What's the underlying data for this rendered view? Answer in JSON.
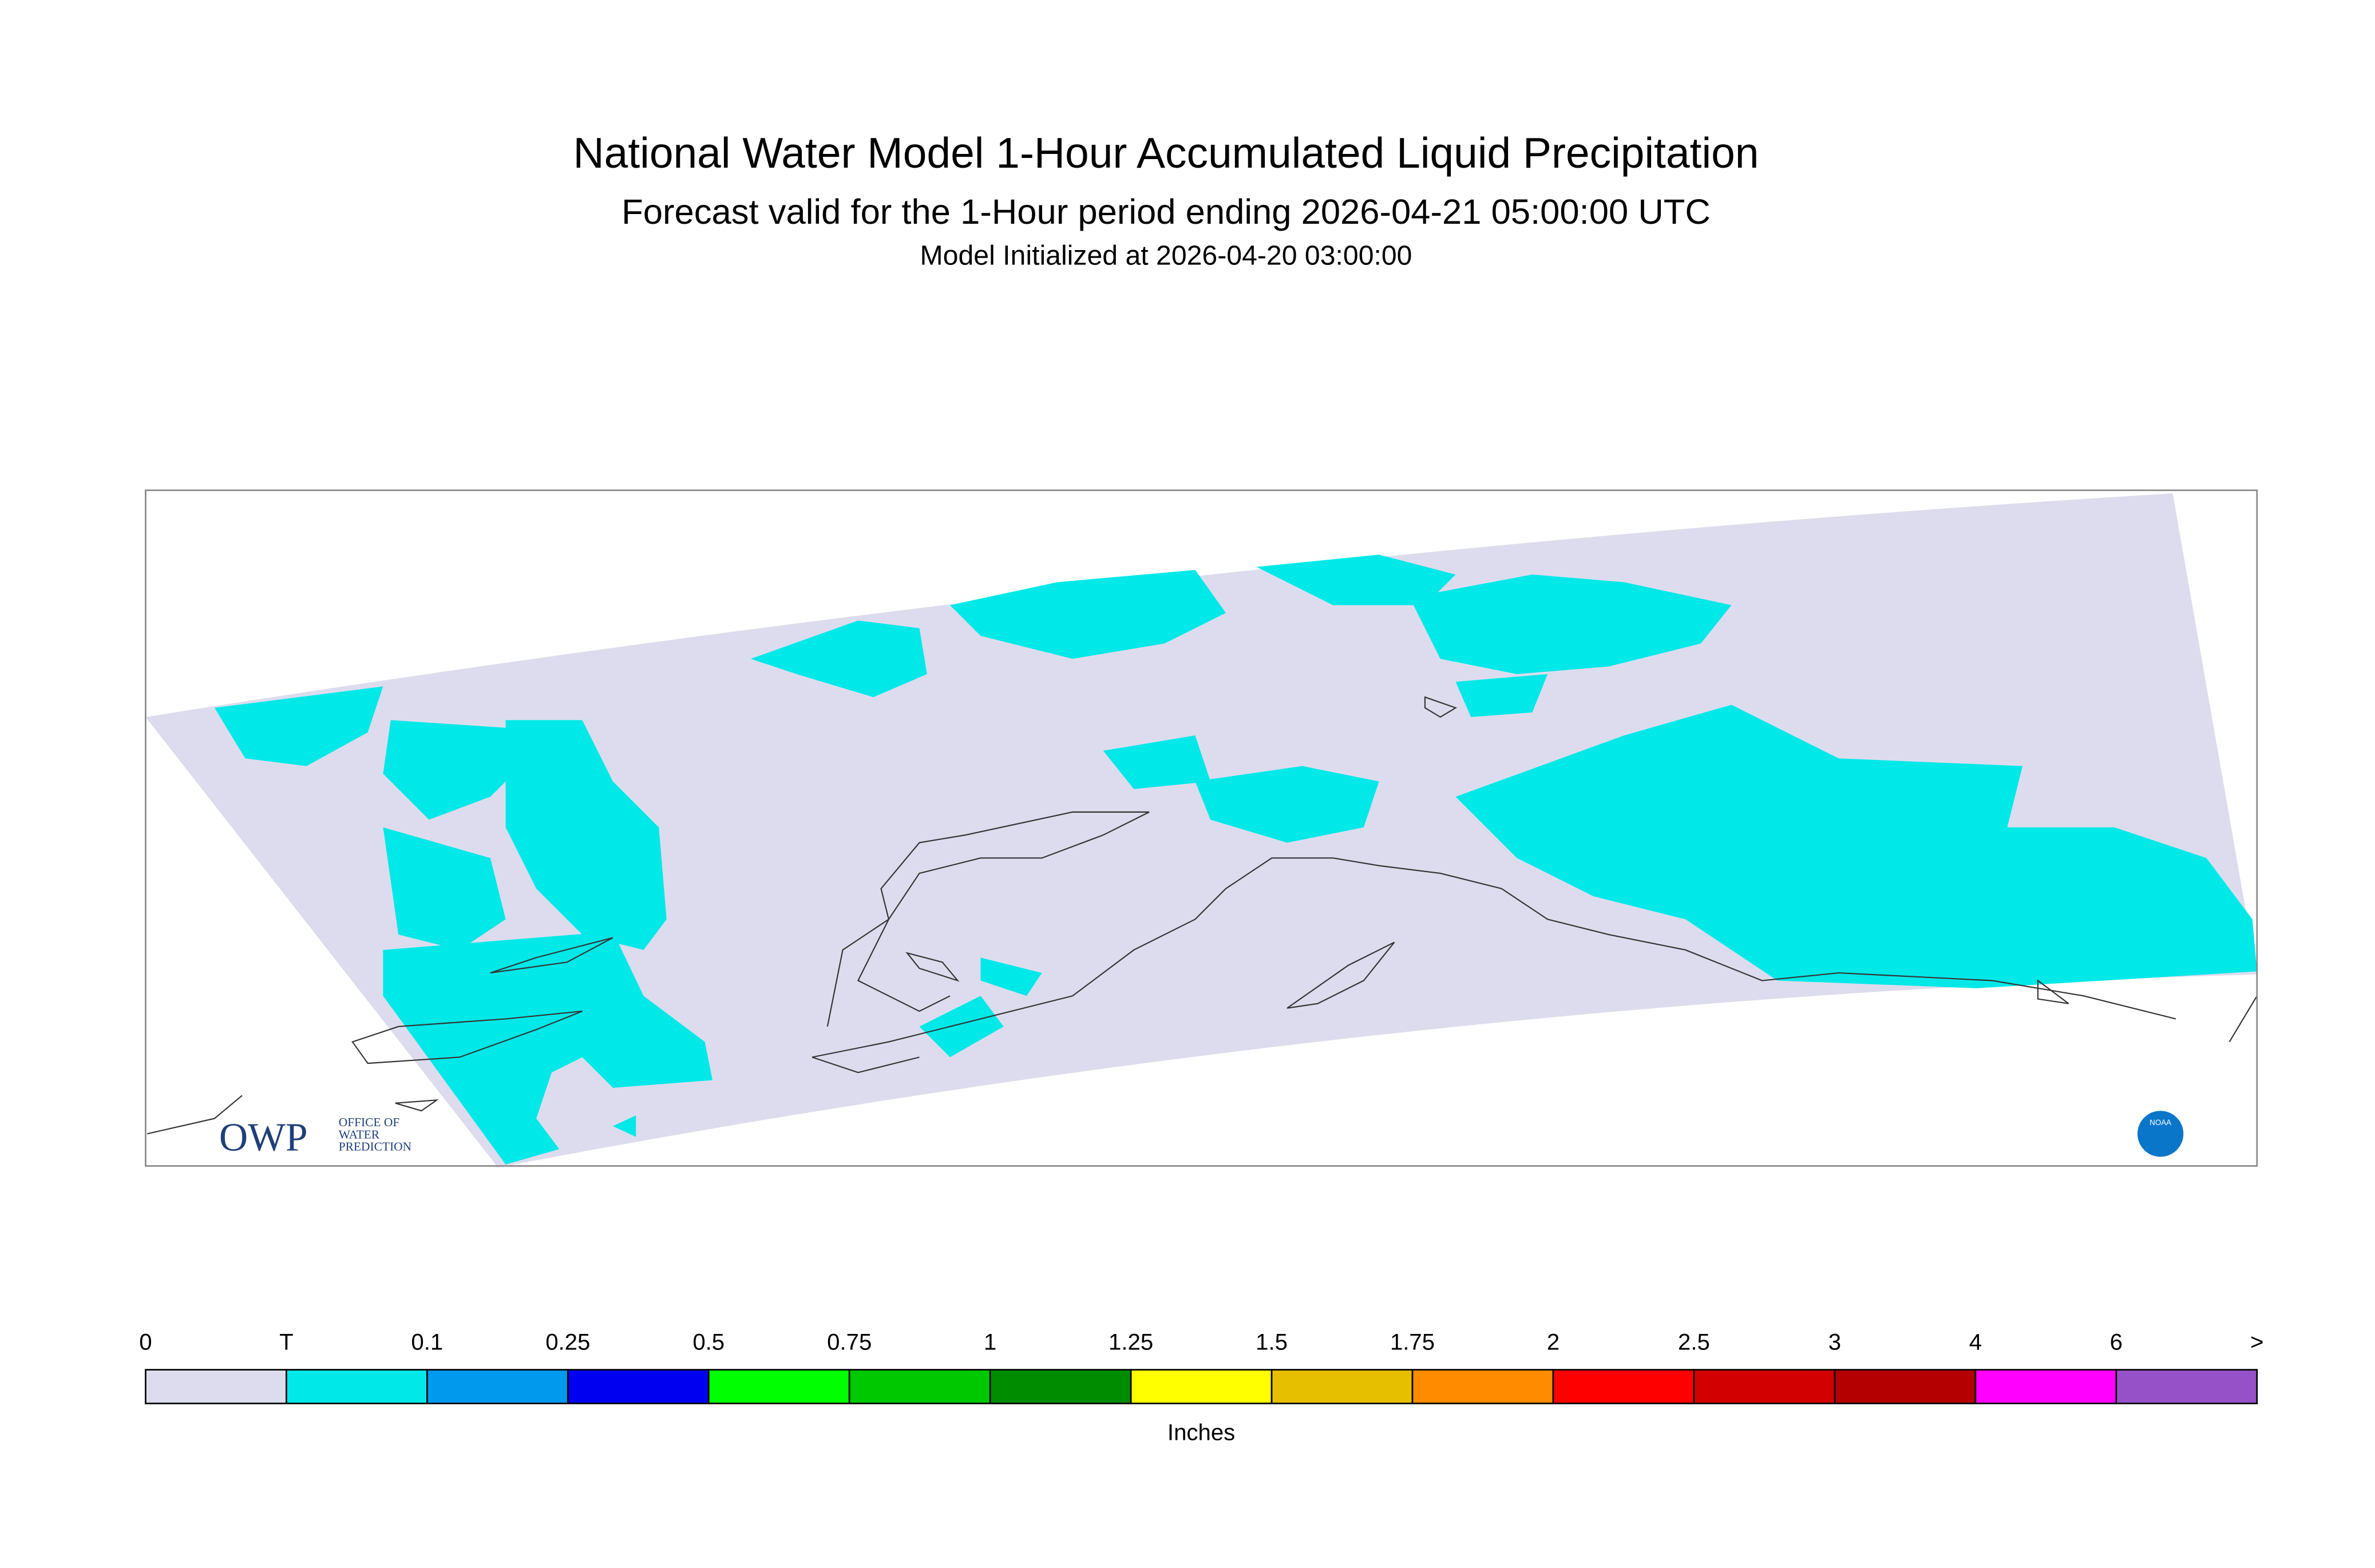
{
  "header": {
    "title": "National Water Model 1-Hour Accumulated Liquid Precipitation",
    "subtitle": "Forecast valid for the 1-Hour period ending 2026-04-21 05:00:00 UTC",
    "initialized": "Model Initialized at 2026-04-20 03:00:00"
  },
  "legend": {
    "labels": [
      "0",
      "T",
      "0.1",
      "0.25",
      "0.5",
      "0.75",
      "1",
      "1.25",
      "1.5",
      "1.75",
      "2",
      "2.5",
      "3",
      "4",
      "6",
      ">"
    ],
    "colors": [
      "#dcdcee",
      "#00e8e8",
      "#0099ee",
      "#0000f0",
      "#00ff00",
      "#00c800",
      "#008c00",
      "#ffff00",
      "#e6c000",
      "#ff8c00",
      "#ff0000",
      "#d20000",
      "#b40000",
      "#ff00ff",
      "#9650c8"
    ],
    "unit": "Inches"
  },
  "logos": {
    "owp": "OWP",
    "owp_lines": [
      "OFFICE OF",
      "WATER",
      "PREDICTION"
    ],
    "noaa": "NOAA"
  }
}
